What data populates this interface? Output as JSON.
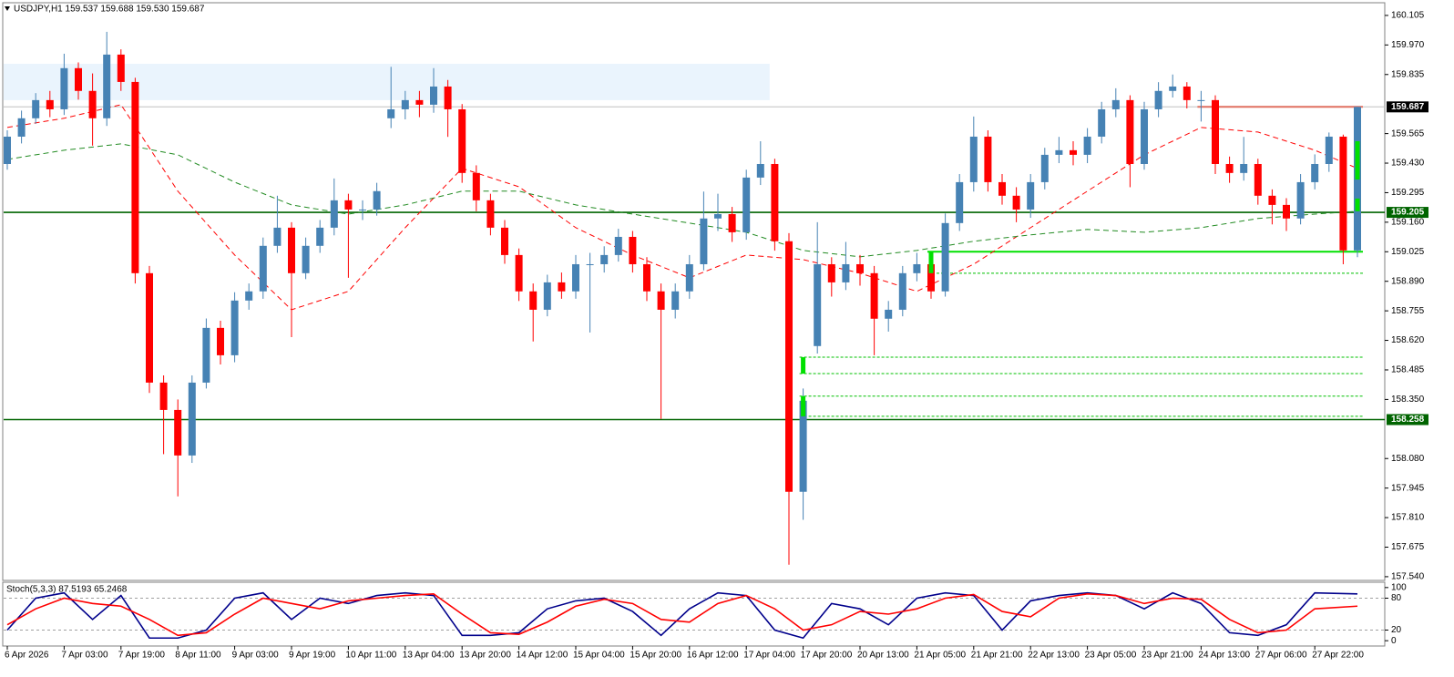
{
  "chart_data": [
    {
      "type": "candlestick",
      "title": "USDJPY,H1  159.537 159.688 159.530 159.687",
      "categories": [
        "6 Apr 2026",
        null,
        null,
        null,
        "7 Apr 03:00",
        null,
        null,
        null,
        "7 Apr 19:00",
        null,
        null,
        null,
        "8 Apr 11:00",
        null,
        null,
        null,
        "9 Apr 03:00",
        null,
        null,
        null,
        "9 Apr 19:00",
        null,
        null,
        null,
        "10 Apr 11:00",
        null,
        null,
        null,
        "13 Apr 04:00",
        null,
        null,
        null,
        "13 Apr 20:00",
        null,
        null,
        null,
        "14 Apr 12:00",
        null,
        null,
        null,
        "15 Apr 04:00",
        null,
        null,
        null,
        "15 Apr 20:00",
        null,
        null,
        null,
        "16 Apr 12:00",
        null,
        null,
        null,
        "17 Apr 04:00",
        null,
        null,
        null,
        "17 Apr 20:00",
        null,
        null,
        null,
        "20 Apr 13:00",
        null,
        null,
        null,
        "21 Apr 05:00",
        null,
        null,
        null,
        "21 Apr 21:00",
        null,
        null,
        null,
        "22 Apr 13:00",
        null,
        null,
        null,
        "23 Apr 05:00",
        null,
        null,
        null,
        "23 Apr 21:00",
        null,
        null,
        null,
        "24 Apr 13:00",
        null,
        null,
        null,
        "27 Apr 06:00",
        null,
        null,
        null,
        "27 Apr 22:00",
        null,
        null,
        null
      ],
      "open": [
        159.426,
        159.551,
        159.635,
        159.718,
        159.676,
        159.864,
        159.76,
        159.635,
        159.926,
        159.801,
        158.927,
        158.427,
        158.302,
        158.094,
        158.427,
        158.677,
        158.552,
        158.802,
        158.844,
        159.052,
        159.135,
        158.927,
        159.052,
        159.135,
        159.26,
        159.218,
        159.218,
        159.635,
        159.676,
        159.718,
        159.697,
        159.78,
        159.676,
        159.385,
        159.26,
        159.135,
        159.01,
        158.844,
        158.76,
        158.885,
        158.844,
        158.968,
        158.968,
        159.01,
        159.093,
        158.968,
        158.844,
        158.76,
        158.844,
        158.968,
        159.177,
        159.197,
        159.114,
        159.364,
        159.426,
        159.073,
        157.928,
        158.594,
        158.968,
        158.885,
        158.968,
        158.927,
        158.719,
        158.76,
        158.927,
        158.968,
        158.844,
        159.156,
        159.343,
        159.551,
        159.343,
        159.281,
        159.218,
        159.343,
        159.468,
        159.489,
        159.468,
        159.551,
        159.676,
        159.718,
        159.426,
        159.676,
        159.76,
        159.78,
        159.718,
        159.718,
        159.426,
        159.385,
        159.426,
        159.281,
        159.239,
        159.177,
        159.343,
        159.426,
        159.551,
        159.031
      ],
      "high": [
        159.58,
        159.67,
        159.75,
        159.76,
        159.93,
        159.89,
        159.84,
        160.03,
        159.95,
        159.82,
        158.96,
        158.46,
        158.35,
        158.46,
        158.72,
        158.71,
        158.84,
        158.88,
        159.09,
        159.281,
        159.16,
        159.09,
        159.17,
        159.36,
        159.29,
        159.26,
        159.34,
        159.87,
        159.76,
        159.76,
        159.864,
        159.81,
        159.7,
        159.42,
        159.29,
        159.17,
        159.04,
        158.88,
        158.92,
        158.93,
        159.01,
        159.02,
        159.05,
        159.13,
        159.12,
        159.0,
        158.88,
        158.88,
        159.01,
        159.3,
        159.29,
        159.23,
        159.4,
        159.53,
        159.45,
        159.11,
        158.4,
        159.16,
        159.0,
        159.07,
        159.01,
        158.96,
        158.8,
        158.96,
        159.02,
        159.0,
        159.2,
        159.38,
        159.643,
        159.58,
        159.38,
        159.32,
        159.38,
        159.5,
        159.55,
        159.53,
        159.59,
        159.71,
        159.772,
        159.74,
        159.71,
        159.8,
        159.835,
        159.8,
        159.76,
        159.74,
        159.46,
        159.55,
        159.45,
        159.31,
        159.27,
        159.38,
        159.47,
        159.57,
        159.56,
        159.688
      ],
      "low": [
        159.4,
        159.52,
        159.61,
        159.64,
        159.65,
        159.72,
        159.51,
        159.6,
        159.76,
        158.88,
        158.38,
        158.1,
        157.907,
        158.06,
        158.4,
        158.51,
        158.52,
        158.76,
        158.81,
        159.02,
        158.635,
        158.9,
        159.02,
        159.1,
        158.906,
        159.17,
        159.19,
        159.59,
        159.63,
        159.64,
        159.66,
        159.55,
        159.34,
        159.21,
        159.1,
        158.97,
        158.8,
        158.615,
        158.73,
        158.81,
        158.81,
        158.656,
        158.93,
        158.98,
        158.93,
        158.8,
        158.261,
        158.72,
        158.81,
        158.94,
        159.12,
        159.07,
        159.08,
        159.33,
        159.03,
        157.595,
        157.8,
        158.56,
        158.82,
        158.85,
        158.87,
        158.552,
        158.66,
        158.73,
        158.89,
        158.81,
        158.82,
        159.12,
        159.3,
        159.3,
        159.24,
        159.16,
        159.18,
        159.31,
        159.43,
        159.42,
        159.43,
        159.52,
        159.64,
        159.32,
        159.4,
        159.64,
        159.73,
        159.68,
        159.62,
        159.38,
        159.34,
        159.35,
        159.24,
        159.15,
        159.12,
        159.15,
        159.31,
        159.39,
        158.968,
        159.0
      ],
      "close": [
        159.551,
        159.635,
        159.718,
        159.676,
        159.864,
        159.76,
        159.635,
        159.926,
        159.801,
        158.927,
        158.427,
        158.302,
        158.094,
        158.427,
        158.677,
        158.552,
        158.802,
        158.844,
        159.052,
        159.135,
        158.927,
        159.052,
        159.135,
        159.26,
        159.218,
        159.218,
        159.302,
        159.676,
        159.718,
        159.697,
        159.78,
        159.676,
        159.385,
        159.26,
        159.135,
        159.01,
        158.844,
        158.76,
        158.885,
        158.844,
        158.968,
        158.968,
        159.01,
        159.093,
        158.968,
        158.844,
        158.76,
        158.844,
        158.968,
        159.177,
        159.197,
        159.114,
        159.364,
        159.426,
        159.073,
        157.928,
        158.344,
        158.968,
        158.885,
        158.968,
        158.927,
        158.719,
        158.76,
        158.927,
        158.968,
        158.844,
        159.156,
        159.343,
        159.551,
        159.343,
        159.281,
        159.218,
        159.343,
        159.468,
        159.489,
        159.468,
        159.551,
        159.676,
        159.718,
        159.426,
        159.676,
        159.76,
        159.78,
        159.718,
        159.718,
        159.426,
        159.385,
        159.426,
        159.281,
        159.239,
        159.177,
        159.343,
        159.426,
        159.551,
        159.031,
        159.687
      ],
      "up_color": "#4682b4",
      "down_color": "#ff0000",
      "lines": [
        {
          "color": "#ff0000",
          "dash": true,
          "x": [
            0,
            4,
            8,
            12,
            16,
            20,
            24,
            28,
            32,
            36,
            40,
            44,
            48,
            52,
            56,
            60,
            64,
            68,
            72,
            76,
            80,
            84,
            88,
            92,
            95
          ],
          "values": [
            159.593,
            159.635,
            159.697,
            159.302,
            159.01,
            158.76,
            158.844,
            159.135,
            159.406,
            159.322,
            159.135,
            159.01,
            158.906,
            159.01,
            158.989,
            158.927,
            158.844,
            158.968,
            159.135,
            159.302,
            159.468,
            159.593,
            159.572,
            159.489,
            159.406
          ]
        },
        {
          "color": "#228b22",
          "dash": true,
          "x": [
            0,
            4,
            8,
            12,
            16,
            20,
            24,
            28,
            32,
            36,
            40,
            44,
            48,
            52,
            56,
            60,
            64,
            68,
            72,
            76,
            80,
            84,
            88,
            92,
            95
          ],
          "values": [
            159.447,
            159.489,
            159.518,
            159.468,
            159.343,
            159.239,
            159.197,
            159.239,
            159.302,
            159.302,
            159.239,
            159.197,
            159.156,
            159.114,
            159.031,
            159.002,
            159.031,
            159.073,
            159.102,
            159.127,
            159.114,
            159.135,
            159.177,
            159.197,
            159.21
          ]
        }
      ],
      "zones": [
        {
          "from": 0,
          "to": 53,
          "low": 159.718,
          "high": 159.884,
          "color": "#eaf4fd"
        }
      ],
      "price_lines": [
        {
          "value": 159.687,
          "color": "#c0c0c0",
          "tag_color": "#000000"
        },
        {
          "value": 159.205,
          "color": "#006400",
          "tag_color": "#006400"
        },
        {
          "value": 158.258,
          "color": "#006400",
          "tag_color": "#006400"
        }
      ],
      "segments": [
        {
          "value": 159.025,
          "from": 65,
          "to": 95,
          "color": "#00e000",
          "dashed": false
        },
        {
          "value": 159.687,
          "from": 84,
          "to": 95,
          "color": "#e07060",
          "dashed": false
        },
        {
          "value": 158.927,
          "from": 65,
          "to": 95,
          "color": "#00c000",
          "dashed": true
        },
        {
          "value": 158.543,
          "from": 56,
          "to": 95,
          "color": "#00c000",
          "dashed": true
        },
        {
          "value": 158.468,
          "from": 56,
          "to": 95,
          "color": "#00c000",
          "dashed": true
        },
        {
          "value": 158.365,
          "from": 56,
          "to": 95,
          "color": "#00c000",
          "dashed": true
        },
        {
          "value": 158.273,
          "from": 56,
          "to": 95,
          "color": "#00c000",
          "dashed": true
        }
      ],
      "boxes": [
        {
          "at": 65,
          "low": 158.927,
          "high": 159.025,
          "color": "#00e000"
        },
        {
          "at": 56,
          "low": 158.468,
          "high": 158.543,
          "color": "#00e000"
        },
        {
          "at": 56,
          "low": 158.273,
          "high": 158.365,
          "color": "#00e000"
        },
        {
          "at": 95,
          "low": 159.355,
          "high": 159.53,
          "color": "#00e000"
        },
        {
          "at": 95,
          "low": 159.21,
          "high": 159.268,
          "color": "#00e000"
        }
      ],
      "ylim": [
        157.523,
        160.163
      ],
      "yticks": [
        160.105,
        {
          "value": 159.97,
          "label": "159.970"
        },
        159.835,
        159.565,
        {
          "value": 159.43,
          "label": "159.430"
        },
        159.295,
        {
          "value": 159.16,
          "label": "159.160"
        },
        159.025,
        {
          "value": 158.89,
          "label": "158.890"
        },
        158.755,
        {
          "value": 158.62,
          "label": "158.620"
        },
        158.485,
        {
          "value": 158.35,
          "label": "158.350"
        },
        {
          "value": 158.08,
          "label": "158.080"
        },
        157.945,
        {
          "value": 157.81,
          "label": "157.810"
        },
        157.675,
        {
          "value": 157.54,
          "label": "157.540"
        }
      ]
    },
    {
      "type": "line",
      "title": "Stoch(5,3,3) 87.5193 65.2468",
      "x": [
        0,
        2,
        4,
        6,
        8,
        10,
        12,
        14,
        16,
        18,
        20,
        22,
        24,
        26,
        28,
        30,
        32,
        34,
        36,
        38,
        40,
        42,
        44,
        46,
        48,
        50,
        52,
        54,
        56,
        58,
        60,
        62,
        64,
        66,
        68,
        70,
        72,
        74,
        76,
        78,
        80,
        82,
        84,
        86,
        88,
        90,
        92,
        95
      ],
      "series": [
        {
          "color": "#00008b",
          "values": [
            20,
            80,
            90,
            40,
            85,
            5,
            5,
            20,
            80,
            90,
            40,
            80,
            70,
            85,
            90,
            85,
            10,
            10,
            15,
            60,
            75,
            80,
            55,
            10,
            60,
            90,
            85,
            20,
            5,
            70,
            60,
            30,
            80,
            90,
            85,
            20,
            75,
            85,
            90,
            85,
            60,
            90,
            70,
            15,
            10,
            30,
            90,
            88
          ]
        },
        {
          "color": "#ff0000",
          "values": [
            30,
            60,
            80,
            70,
            65,
            40,
            10,
            15,
            50,
            80,
            70,
            60,
            75,
            80,
            85,
            88,
            50,
            15,
            12,
            35,
            65,
            78,
            70,
            40,
            35,
            70,
            85,
            60,
            20,
            30,
            55,
            50,
            60,
            80,
            87,
            55,
            45,
            80,
            88,
            85,
            70,
            80,
            78,
            40,
            15,
            20,
            60,
            65
          ]
        }
      ],
      "levels": [
        80,
        20
      ],
      "ylim": [
        -10,
        110
      ],
      "yticks": [
        100,
        80,
        20,
        0
      ]
    }
  ]
}
